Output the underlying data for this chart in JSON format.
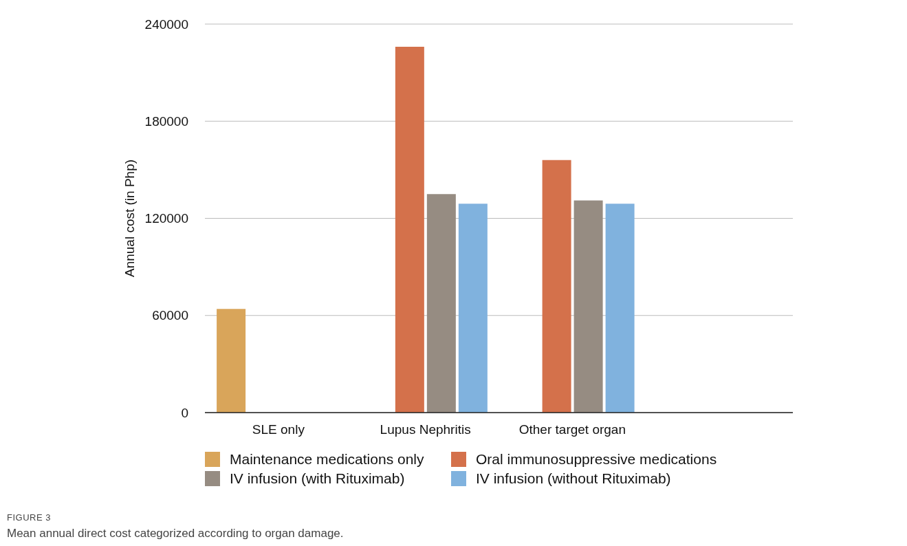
{
  "chart_data": {
    "type": "bar",
    "ylabel": "Annual cost (in Php)",
    "categories": [
      "SLE only",
      "Lupus Nephritis",
      "Other target organ",
      null
    ],
    "series": [
      {
        "name": "Maintenance medications only",
        "color": "#d9a55a",
        "values": [
          64000,
          null,
          null,
          null
        ]
      },
      {
        "name": "Oral immunosuppressive medications",
        "color": "#d4714b",
        "values": [
          null,
          226000,
          156000,
          null
        ]
      },
      {
        "name": "IV infusion (with Rituximab)",
        "color": "#968c82",
        "values": [
          null,
          135000,
          131000,
          null
        ]
      },
      {
        "name": "IV infusion (without Rituximab)",
        "color": "#80b2de",
        "values": [
          null,
          129000,
          129000,
          null
        ]
      }
    ],
    "ylim": [
      0,
      240000
    ],
    "yticks": [
      0,
      60000,
      120000,
      180000,
      240000
    ],
    "grid": "y",
    "legend": "bottom",
    "annotations": [
      "FIGURE 3",
      "Mean annual direct cost categorized according to organ damage."
    ]
  }
}
